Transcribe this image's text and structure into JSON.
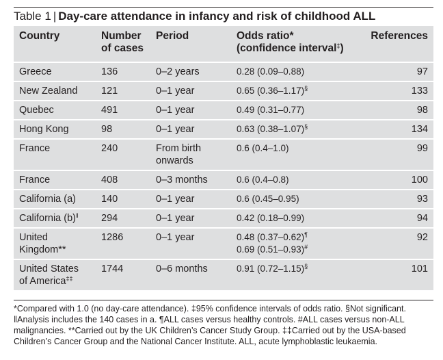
{
  "title": {
    "label": "Table 1",
    "separator": "|",
    "text": "Day-care attendance in infancy and risk of childhood ALL"
  },
  "columns": [
    {
      "line1": "Country",
      "line2": ""
    },
    {
      "line1": "Number",
      "line2": "of cases"
    },
    {
      "line1": "Period",
      "line2": ""
    },
    {
      "line1": "Odds ratio*",
      "line2": "(confidence interval",
      "line2_sup": "‡",
      "line2_tail": ")"
    },
    {
      "line1": "References",
      "line2": ""
    }
  ],
  "rows": [
    {
      "country": "Greece",
      "country_mark": "",
      "cases": "136",
      "period": "0–2 years",
      "odds": "0.28 (0.09–0.88)",
      "odds_sup": "",
      "odds2": "",
      "odds2_sup": "",
      "ref": "97"
    },
    {
      "country": "New Zealand",
      "country_mark": "",
      "cases": "121",
      "period": "0–1 year",
      "odds": "0.65 (0.36–1.17)",
      "odds_sup": "§",
      "odds2": "",
      "odds2_sup": "",
      "ref": "133"
    },
    {
      "country": "Quebec",
      "country_mark": "",
      "cases": "491",
      "period": "0–1 year",
      "odds": "0.49 (0.31–0.77)",
      "odds_sup": "",
      "odds2": "",
      "odds2_sup": "",
      "ref": "98"
    },
    {
      "country": "Hong Kong",
      "country_mark": "",
      "cases": "98",
      "period": "0–1 year",
      "odds": "0.63 (0.38–1.07)",
      "odds_sup": "§",
      "odds2": "",
      "odds2_sup": "",
      "ref": "134"
    },
    {
      "country": "France",
      "country_mark": "",
      "cases": "240",
      "period": "From birth\nonwards",
      "odds": "0.6 (0.4–1.0)",
      "odds_sup": "",
      "odds2": "",
      "odds2_sup": "",
      "ref": "99"
    },
    {
      "country": "France",
      "country_mark": "",
      "cases": "408",
      "period": "0–3 months",
      "odds": "0.6 (0.4–0.8)",
      "odds_sup": "",
      "odds2": "",
      "odds2_sup": "",
      "ref": "100"
    },
    {
      "country": "California (a)",
      "country_mark": "",
      "cases": "140",
      "period": "0–1 year",
      "odds": "0.6 (0.45–0.95)",
      "odds_sup": "",
      "odds2": "",
      "odds2_sup": "",
      "ref": "93"
    },
    {
      "country": "California (b)",
      "country_mark": "‖",
      "cases": "294",
      "period": "0–1 year",
      "odds": "0.42 (0.18–0.99)",
      "odds_sup": "",
      "odds2": "",
      "odds2_sup": "",
      "ref": "94"
    },
    {
      "country": "United\nKingdom**",
      "country_mark": "",
      "cases": "1286",
      "period": "0–1 year",
      "odds": "0.48 (0.37–0.62)",
      "odds_sup": "¶",
      "odds2": "0.69 (0.51–0.93)",
      "odds2_sup": "#",
      "ref": "92"
    },
    {
      "country": "United States\nof America",
      "country_mark": "‡‡",
      "cases": "1744",
      "period": "0–6 months",
      "odds": "0.91 (0.72–1.15)",
      "odds_sup": "§",
      "odds2": "",
      "odds2_sup": "",
      "ref": "101"
    }
  ],
  "footnote": "*Compared with 1.0 (no day-care attendance). ‡95% confidence intervals of odds ratio. §Not significant. ‖Analysis includes the 140 cases in a. ¶ALL cases versus healthy controls. #ALL cases versus non-ALL malignancies. **Carried out by the UK Children’s Cancer Study Group. ‡‡Carried out by the USA-based Children’s Cancer Group and the National Cancer Institute. ALL, acute lymphoblastic leukaemia."
}
